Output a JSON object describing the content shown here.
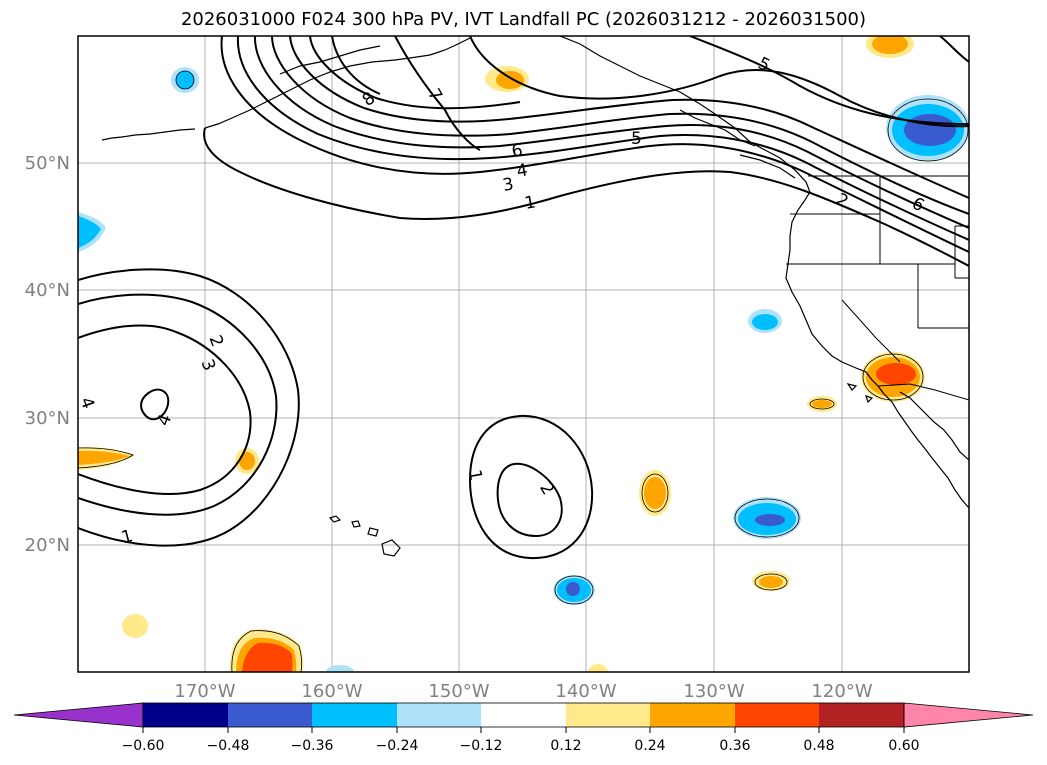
{
  "title": "2026031000 F024 300 hPa PV, IVT Landfall PC (2026031212 - 2026031500)",
  "map": {
    "lon_labels": [
      "170°W",
      "160°W",
      "150°W",
      "140°W",
      "130°W",
      "120°W"
    ],
    "lat_labels": [
      "50°N",
      "40°N",
      "30°N",
      "20°N"
    ],
    "pv_contour_labels": [
      "8",
      "7",
      "6",
      "5",
      "5",
      "4",
      "3",
      "2",
      "1",
      "6",
      "2",
      "3",
      "4",
      "1",
      "1",
      "2",
      "4"
    ]
  },
  "colorbar": {
    "ticks": [
      "−0.60",
      "−0.48",
      "−0.36",
      "−0.24",
      "−0.12",
      "0.12",
      "0.24",
      "0.36",
      "0.48",
      "0.60"
    ],
    "colors": [
      "#9932cc",
      "#00008b",
      "#3a5bd0",
      "#00bfff",
      "#aee2fb",
      "#ffffff",
      "#ffe98a",
      "#ffa500",
      "#ff4500",
      "#b22222",
      "#ff85aa",
      "#ff85aa"
    ]
  }
}
